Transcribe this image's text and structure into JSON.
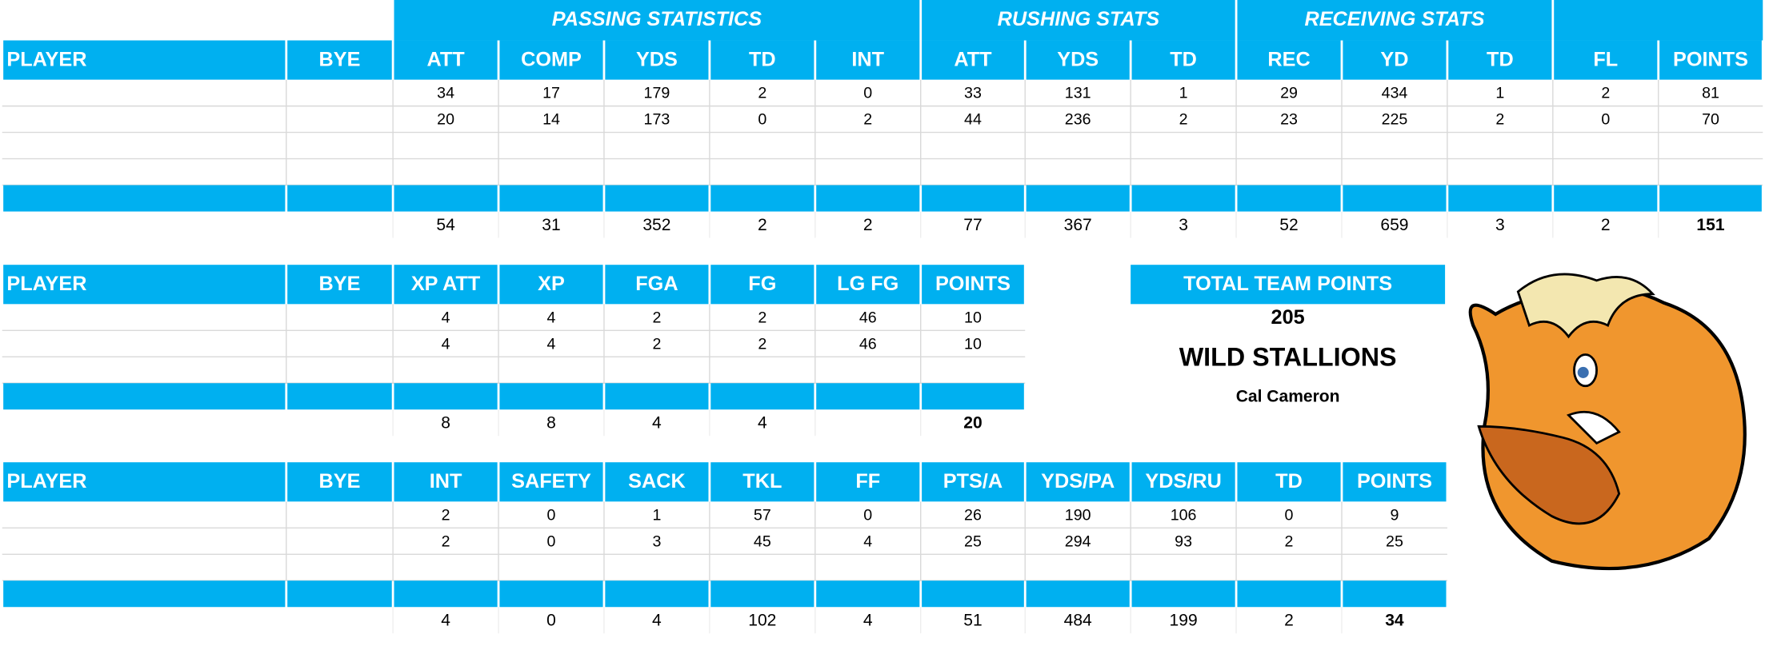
{
  "offense": {
    "group_headers": [
      "PASSING STATISTICS",
      "RUSHING STATS",
      "RECEIVING STATS"
    ],
    "columns": [
      "PLAYER",
      "BYE",
      "ATT",
      "COMP",
      "YDS",
      "TD",
      "INT",
      "ATT",
      "YDS",
      "TD",
      "REC",
      "YD",
      "TD",
      "FL",
      "POINTS"
    ],
    "rows": [
      [
        34,
        17,
        179,
        2,
        0,
        33,
        131,
        1,
        29,
        434,
        1,
        2,
        81
      ],
      [
        20,
        14,
        173,
        0,
        2,
        44,
        236,
        2,
        23,
        225,
        2,
        0,
        70
      ]
    ],
    "totals": [
      54,
      31,
      352,
      2,
      2,
      77,
      367,
      3,
      52,
      659,
      3,
      2,
      151
    ]
  },
  "kicking": {
    "columns": [
      "PLAYER",
      "BYE",
      "XP ATT",
      "XP",
      "FGA",
      "FG",
      "LG FG",
      "POINTS"
    ],
    "rows": [
      [
        4,
        4,
        2,
        2,
        46,
        10
      ],
      [
        4,
        4,
        2,
        2,
        46,
        10
      ]
    ],
    "totals": [
      8,
      8,
      4,
      4,
      null,
      20
    ]
  },
  "defense": {
    "columns": [
      "PLAYER",
      "BYE",
      "INT",
      "SAFETY",
      "SACK",
      "TKL",
      "FF",
      "PTS/A",
      "YDS/PA",
      "YDS/RU",
      "TD",
      "POINTS"
    ],
    "rows": [
      [
        2,
        0,
        1,
        57,
        0,
        26,
        190,
        106,
        0,
        9
      ],
      [
        2,
        0,
        3,
        45,
        4,
        25,
        294,
        93,
        2,
        25
      ]
    ],
    "totals": [
      4,
      0,
      4,
      102,
      4,
      51,
      484,
      199,
      2,
      34
    ]
  },
  "team": {
    "total_label": "TOTAL TEAM POINTS",
    "total_points": 205,
    "name": "WILD STALLIONS",
    "owner": "Cal Cameron"
  }
}
